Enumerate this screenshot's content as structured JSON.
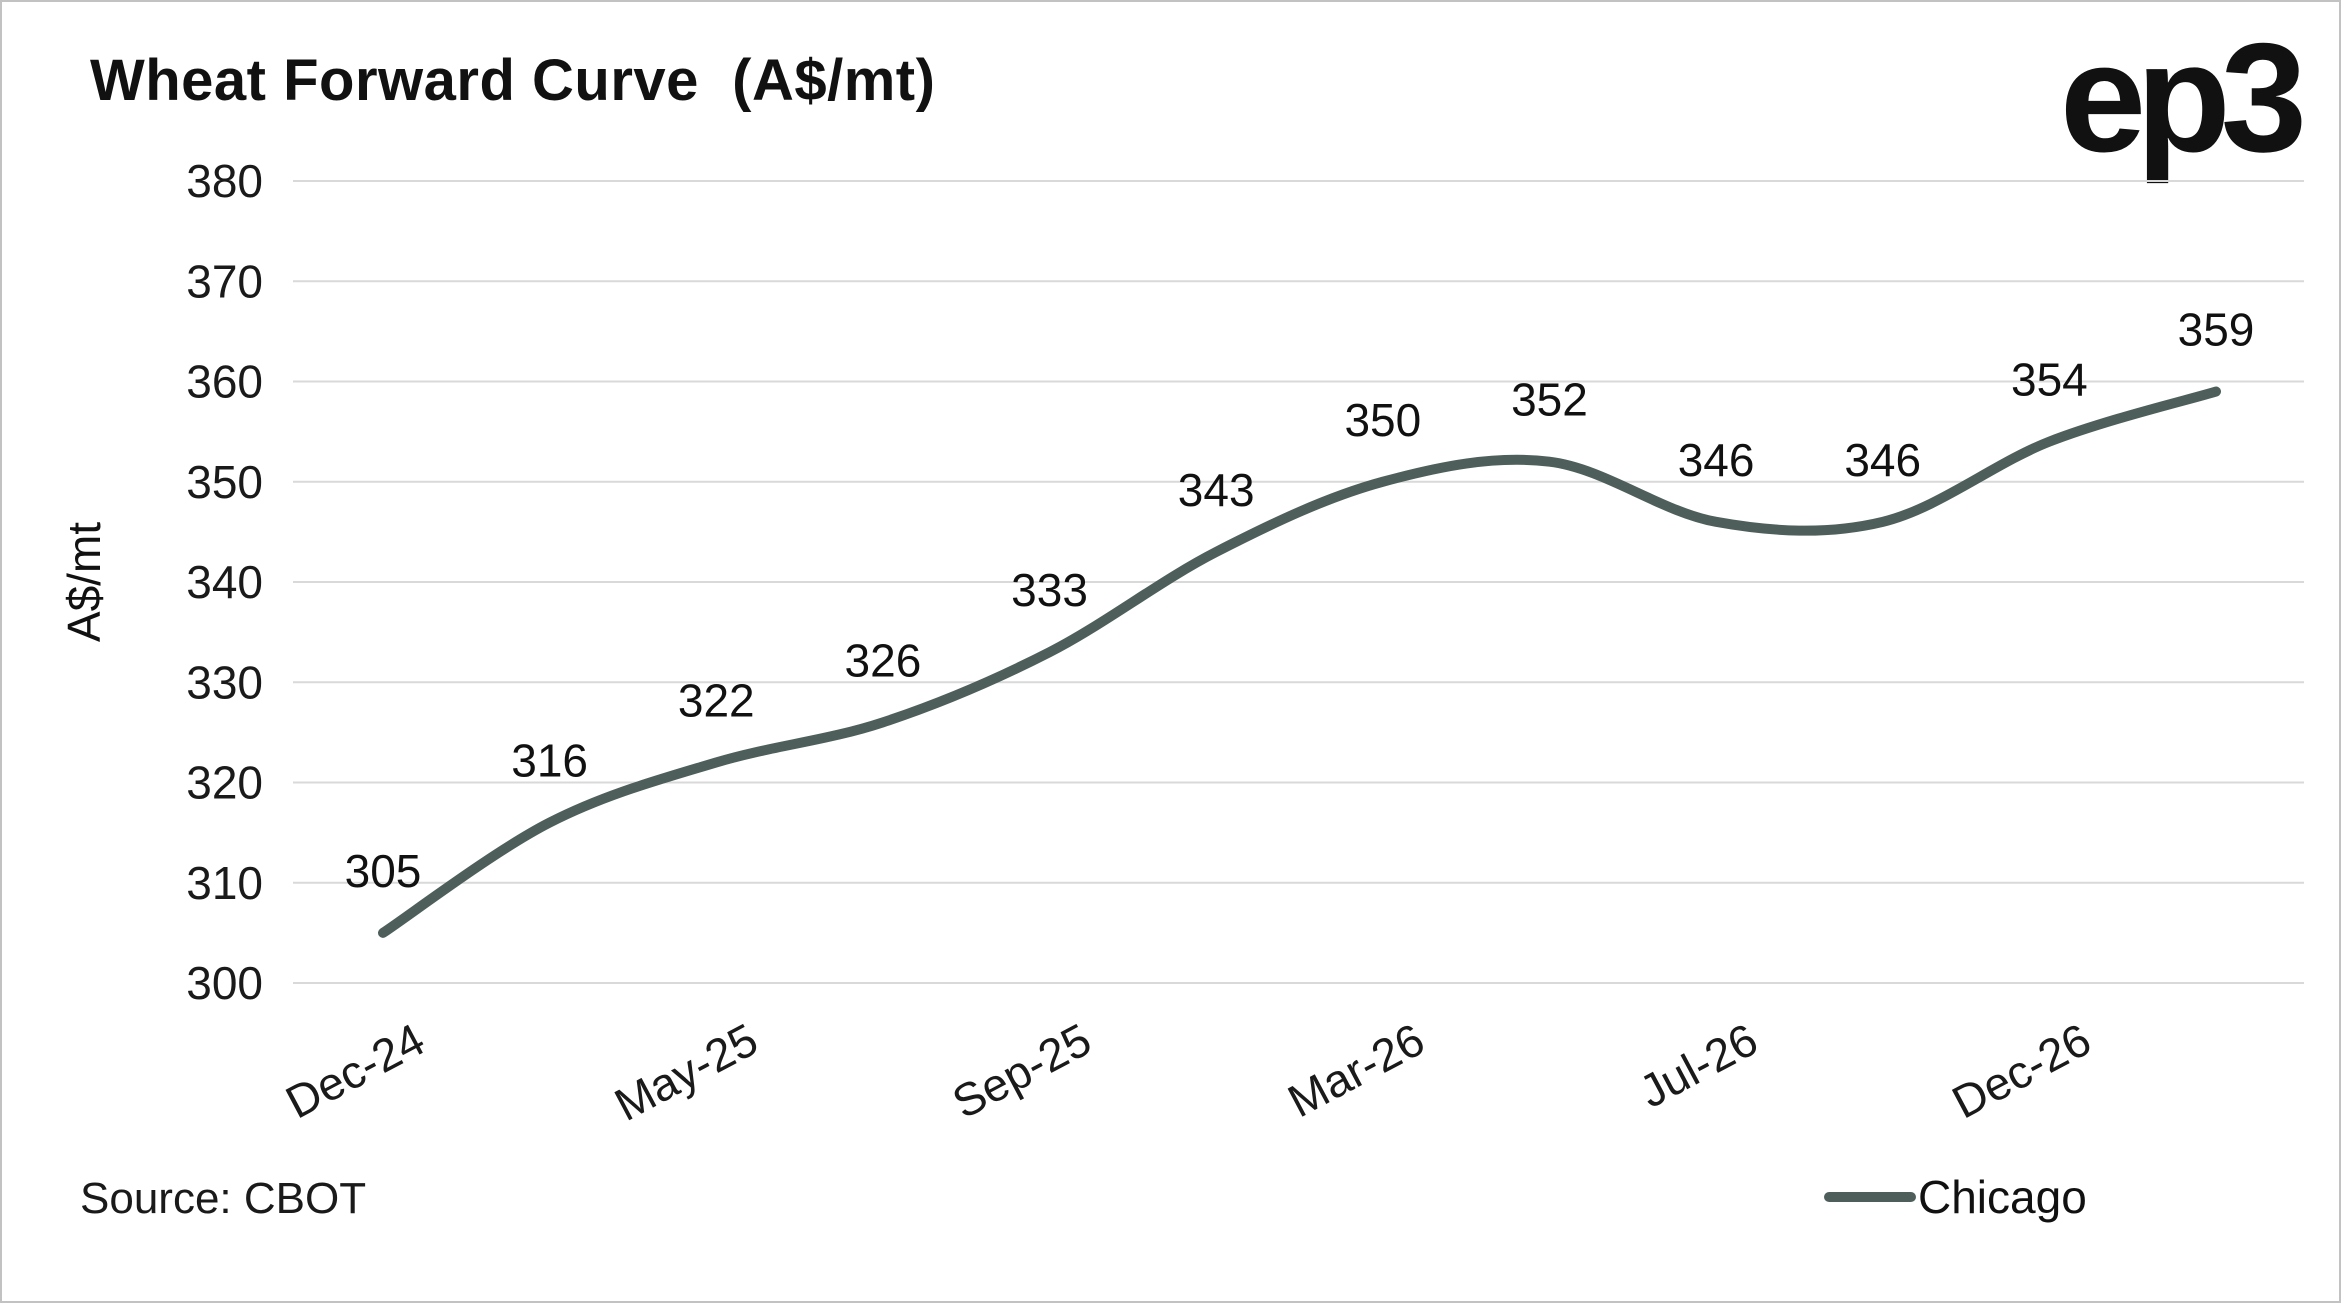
{
  "header": {
    "title": "Wheat Forward Curve  (A$/mt)",
    "logo_text": "ep3"
  },
  "chart_data": {
    "type": "line",
    "title": "Wheat Forward Curve (A$/mt)",
    "ylabel": "A$/mt",
    "ylim": [
      300,
      380
    ],
    "ytick_step": 10,
    "ytick_labels": [
      "300",
      "310",
      "320",
      "330",
      "340",
      "350",
      "360",
      "370",
      "380"
    ],
    "xtick_labels": [
      "Dec-24",
      "May-25",
      "Sep-25",
      "Mar-26",
      "Jul-26",
      "Dec-26"
    ],
    "xtick_positions": [
      0,
      2,
      4,
      6,
      8,
      10
    ],
    "grid": true,
    "data_labels": true,
    "legend_position": "bottom-right",
    "series": [
      {
        "name": "Chicago",
        "color": "#4e5f5b",
        "values": [
          305,
          316,
          322,
          326,
          333,
          343,
          350,
          352,
          346,
          346,
          354,
          359
        ]
      }
    ]
  },
  "footer": {
    "source": "Source: CBOT"
  },
  "colors": {
    "line": "#4e5f5b",
    "grid": "#d9d9d9",
    "background": "#ffffff",
    "border": "#c2c2c2",
    "text": "#111111"
  }
}
